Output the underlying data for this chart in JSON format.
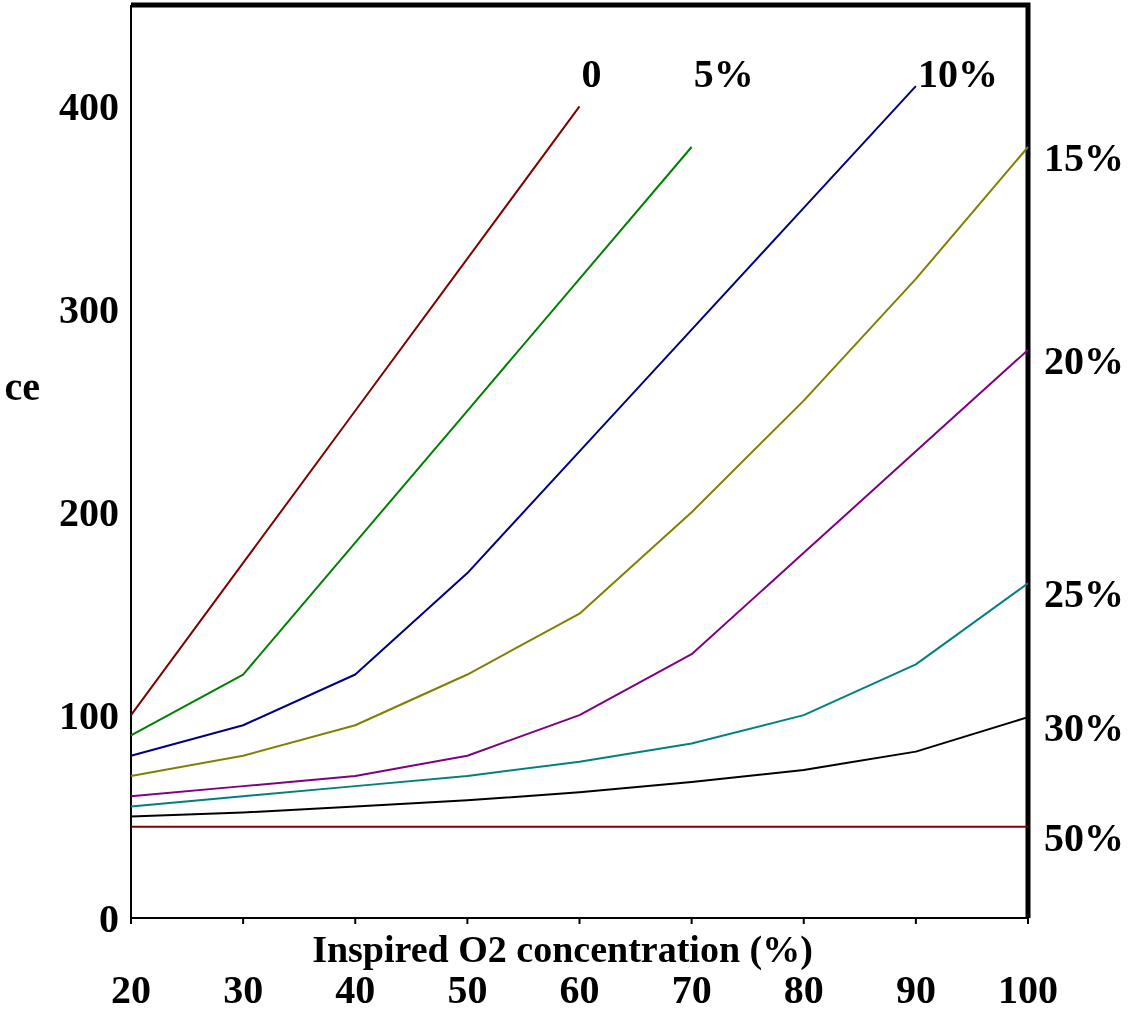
{
  "chart_data": {
    "type": "line",
    "xlabel": "Inspired O2 concentration (%)",
    "ylabel": "ce",
    "xlim": [
      20,
      100
    ],
    "xticks": [
      20,
      30,
      40,
      50,
      60,
      70,
      80,
      90,
      100
    ],
    "ylim": [
      0,
      450
    ],
    "yticks": [
      0,
      100,
      200,
      300,
      400
    ],
    "grid": false,
    "marker": "none",
    "line_style": "solid",
    "series": [
      {
        "name": "0",
        "color": "#800000",
        "x": [
          20,
          30,
          40,
          50,
          60
        ],
        "values": [
          100,
          175,
          250,
          325,
          400
        ]
      },
      {
        "name": "5%",
        "color": "#008000",
        "x": [
          20,
          30,
          40,
          50,
          60,
          70
        ],
        "values": [
          90,
          120,
          185,
          250,
          315,
          380
        ]
      },
      {
        "name": "10%",
        "color": "#000080",
        "x": [
          20,
          30,
          40,
          50,
          60,
          70,
          80,
          90
        ],
        "values": [
          80,
          95,
          120,
          170,
          230,
          290,
          350,
          410
        ]
      },
      {
        "name": "15%",
        "color": "#808000",
        "x": [
          20,
          30,
          40,
          50,
          60,
          70,
          80,
          90,
          100
        ],
        "values": [
          70,
          80,
          95,
          120,
          150,
          200,
          255,
          315,
          380
        ]
      },
      {
        "name": "20%",
        "color": "#800080",
        "x": [
          20,
          30,
          40,
          50,
          60,
          70,
          80,
          90,
          100
        ],
        "values": [
          60,
          65,
          70,
          80,
          100,
          130,
          180,
          230,
          280
        ]
      },
      {
        "name": "25%",
        "color": "#008080",
        "x": [
          20,
          30,
          40,
          50,
          60,
          70,
          80,
          90,
          100
        ],
        "values": [
          55,
          60,
          65,
          70,
          77,
          86,
          100,
          125,
          165
        ]
      },
      {
        "name": "30%",
        "color": "#000000",
        "x": [
          20,
          30,
          40,
          50,
          60,
          70,
          80,
          90,
          100
        ],
        "values": [
          50,
          52,
          55,
          58,
          62,
          67,
          73,
          82,
          99
        ]
      },
      {
        "name": "50%",
        "color": "#800000",
        "x": [
          20,
          30,
          40,
          50,
          60,
          70,
          80,
          90,
          100
        ],
        "values": [
          45,
          45,
          45,
          45,
          45,
          45,
          45,
          45,
          45
        ]
      }
    ]
  }
}
